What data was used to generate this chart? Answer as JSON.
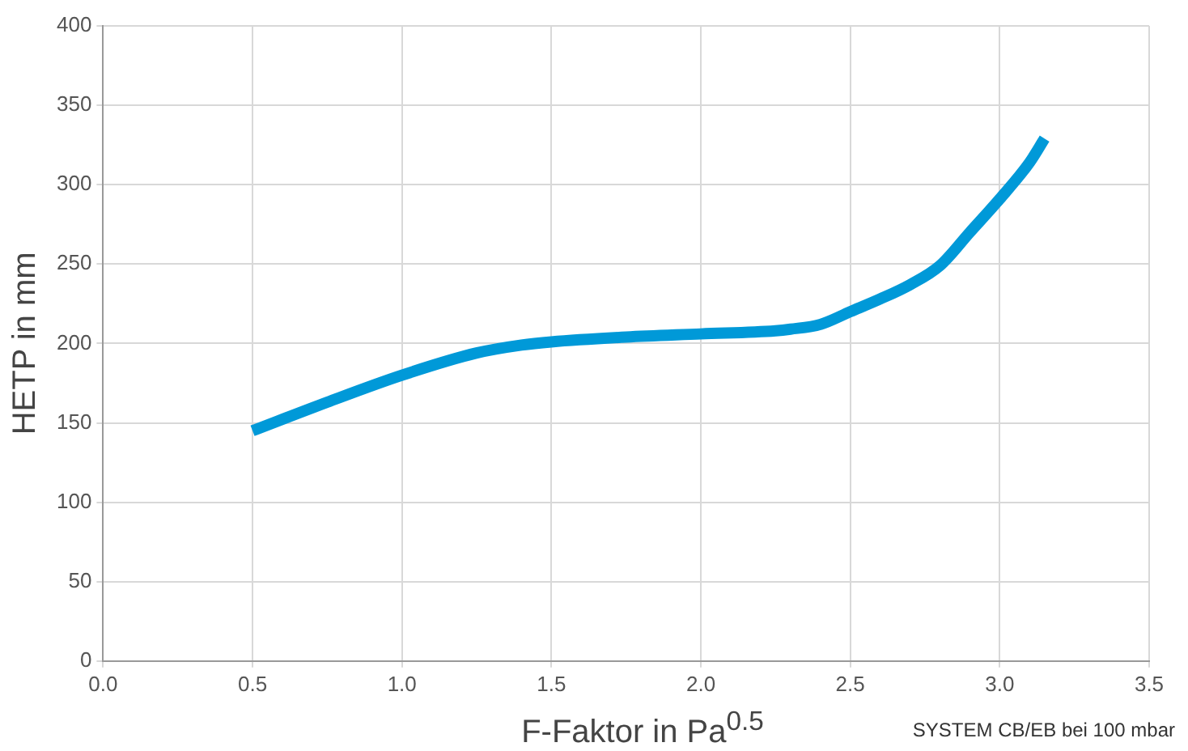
{
  "chart_data": {
    "type": "line",
    "xlabel": "F-Faktor in Pa$^{0.5}$",
    "ylabel": "HETP in mm",
    "annotations": [
      "SYSTEM CB/EB bei 100 mbar"
    ],
    "x": [
      0.5,
      0.75,
      1.0,
      1.25,
      1.4,
      1.5,
      1.75,
      2.0,
      2.25,
      2.3,
      2.4,
      2.5,
      2.6,
      2.7,
      2.8,
      2.9,
      3.0,
      3.1,
      3.15
    ],
    "series": [
      {
        "color": "#0099d8",
        "values": [
          145,
          163,
          180,
          194,
          199,
          201,
          204,
          206,
          208,
          209,
          212,
          220,
          228,
          237,
          249,
          270,
          291,
          314,
          329
        ]
      }
    ],
    "xlim": [
      0,
      3.5
    ],
    "xticks": [
      {
        "value": 0,
        "label": "0.0"
      },
      0.5,
      {
        "value": 1,
        "label": "1.0"
      },
      1.5,
      {
        "value": 2,
        "label": "2.0"
      },
      2.5,
      {
        "value": 3,
        "label": "3.0"
      },
      3.5
    ],
    "ylim": [
      0,
      400
    ],
    "yticks": [
      0,
      50,
      100,
      150,
      200,
      250,
      300,
      350,
      400
    ],
    "grid": true,
    "legend": false,
    "marker": "none",
    "line_style": "solid"
  }
}
